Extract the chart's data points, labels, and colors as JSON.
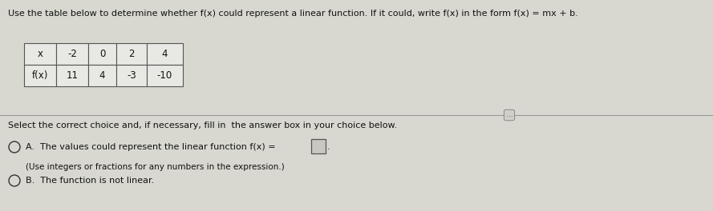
{
  "background_color": "#d8d8d0",
  "title_text": "Use the table below to determine whether f(x) could represent a linear function. If it could, write f(x) in the form f(x) = mx + b.",
  "table": {
    "row1_label": "x",
    "row2_label": "f(x)",
    "x_values": [
      "-2",
      "0",
      "2",
      "4"
    ],
    "fx_values": [
      "11",
      "4",
      "-3",
      "-10"
    ]
  },
  "divider_text": "...",
  "prompt_text": "Select the correct choice and, if necessary, fill in  the answer box in your choice below.",
  "choice_a_prefix": "A.  The values could represent the linear function f(x) =",
  "choice_a_suffix": ".",
  "choice_a_note": "(Use integers or fractions for any numbers in the expression.)",
  "choice_b_text": "B.  The function is not linear.",
  "text_color": "#111111",
  "table_bg": "#e8e8e4",
  "table_border": "#555555",
  "circle_color": "#333333",
  "answer_box_bg": "#c8c8c0",
  "answer_box_border": "#555555",
  "divider_line_color": "#999999",
  "divider_box_bg": "#d0d0c8",
  "divider_box_border": "#888888"
}
